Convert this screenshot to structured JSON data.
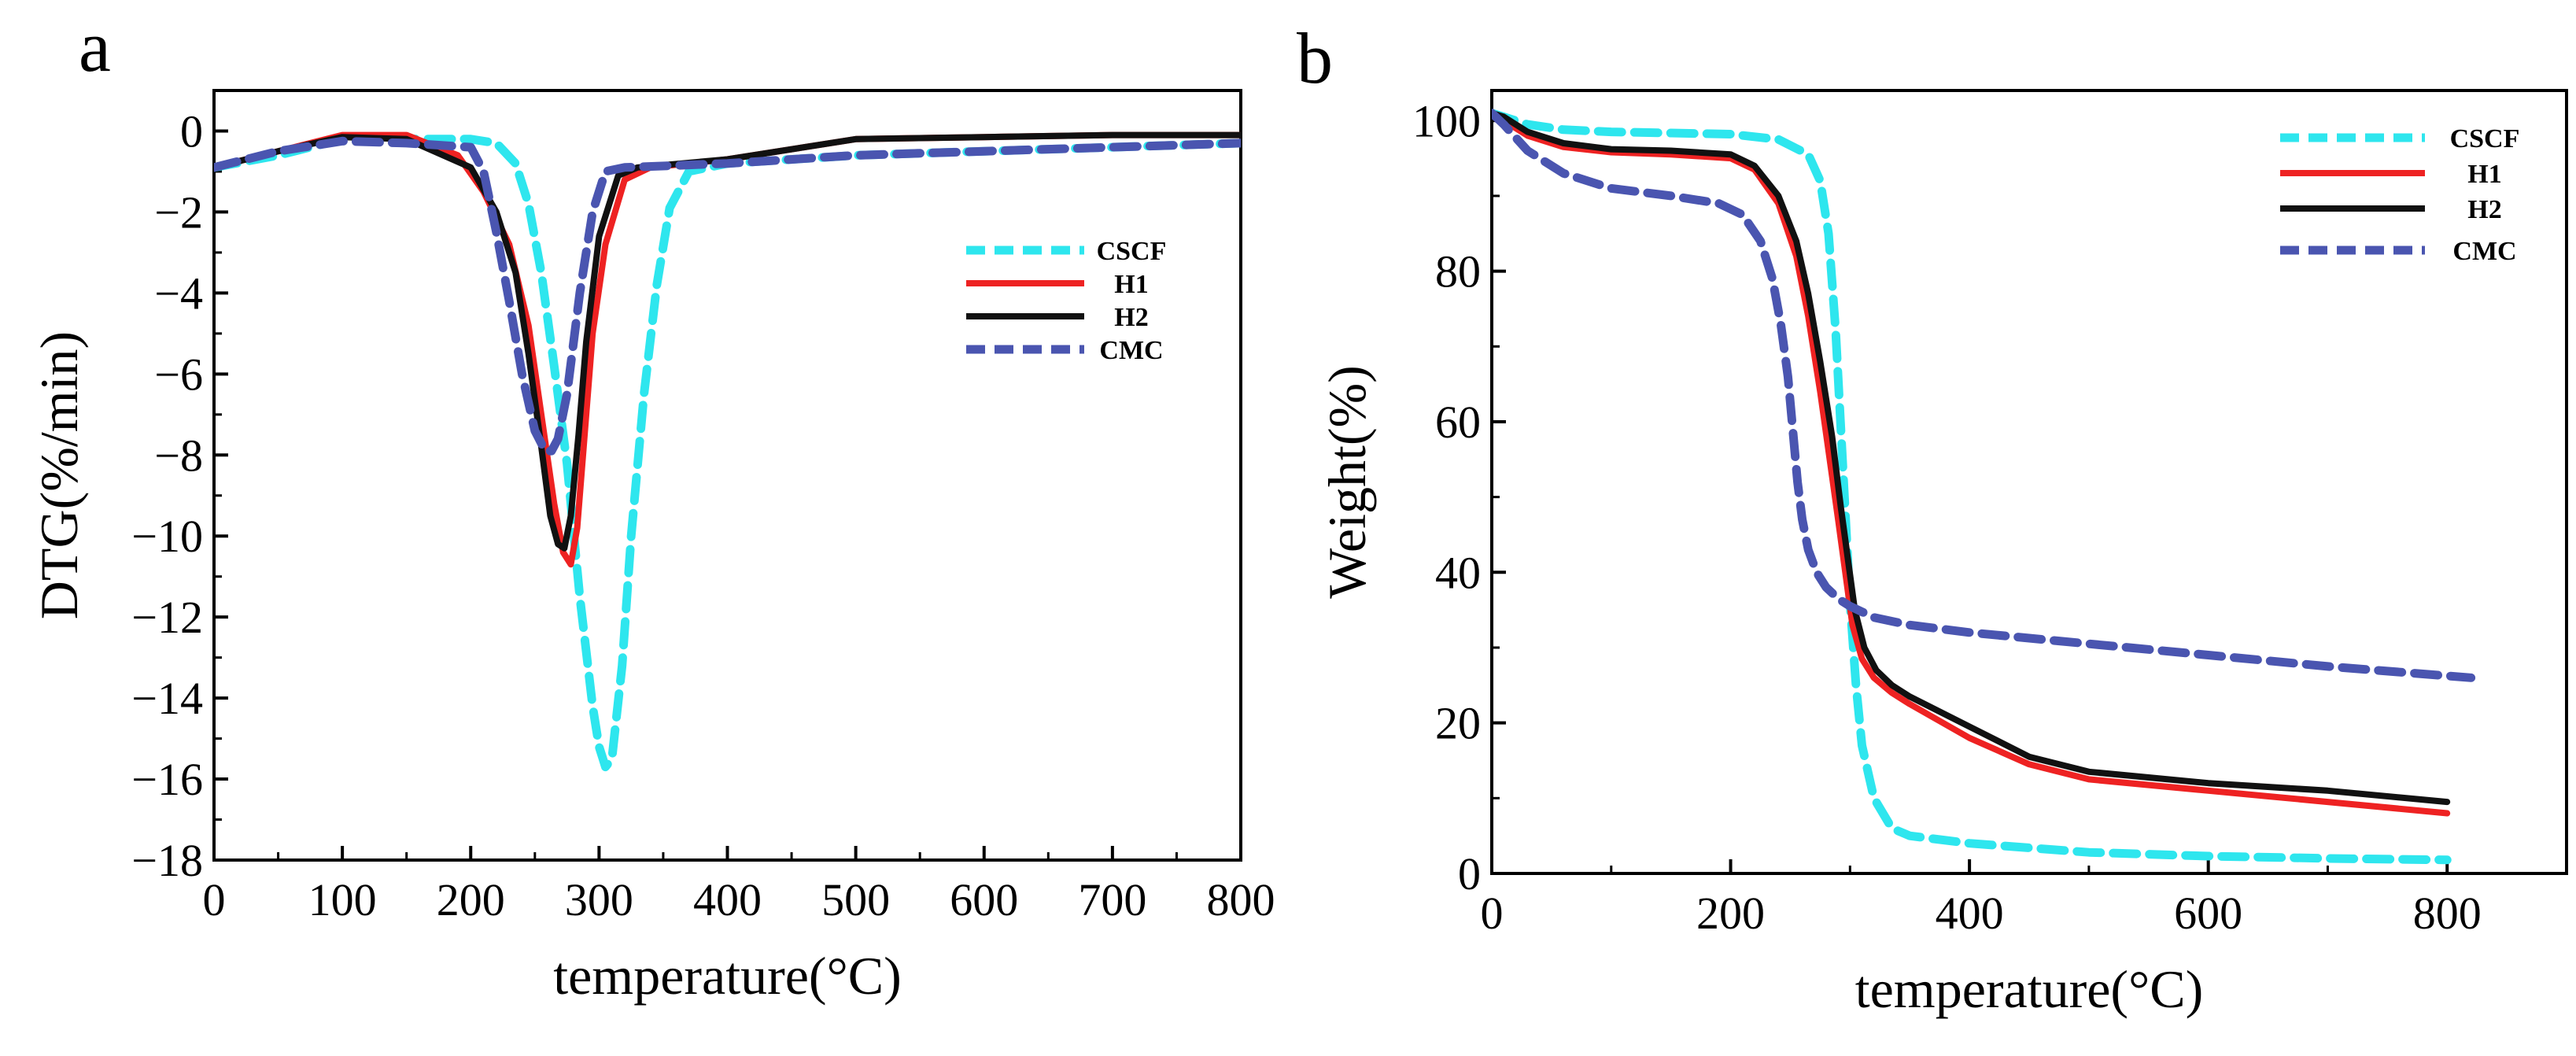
{
  "figure": {
    "panel_labels": [
      "a",
      "b"
    ]
  },
  "chart_data": [
    {
      "type": "line",
      "panel": "a",
      "xlabel": "temperature(°C)",
      "ylabel": "DTG(%/min)",
      "xlim": [
        0,
        800
      ],
      "ylim": [
        -18,
        1
      ],
      "xticks": [
        0,
        100,
        200,
        300,
        400,
        500,
        600,
        700,
        800
      ],
      "yticks": [
        0,
        -2,
        -4,
        -6,
        -8,
        -10,
        -12,
        -14,
        -16,
        -18
      ],
      "legend_position": "right",
      "series": [
        {
          "name": "CSCF",
          "color": "#2ee6ee",
          "dash": "dashed",
          "x": [
            0,
            50,
            100,
            150,
            200,
            220,
            235,
            245,
            255,
            265,
            275,
            285,
            295,
            300,
            305,
            310,
            318,
            325,
            335,
            345,
            355,
            370,
            400,
            500,
            600,
            700,
            800
          ],
          "y": [
            -0.9,
            -0.6,
            -0.2,
            -0.2,
            -0.2,
            -0.3,
            -0.8,
            -1.8,
            -3.5,
            -5.8,
            -8.2,
            -11.5,
            -14.2,
            -15.2,
            -15.7,
            -15.5,
            -13.2,
            -10.0,
            -6.5,
            -3.8,
            -1.9,
            -1.0,
            -0.8,
            -0.6,
            -0.5,
            -0.4,
            -0.3
          ]
        },
        {
          "name": "H1",
          "color": "#ee2222",
          "dash": "solid",
          "x": [
            0,
            50,
            100,
            150,
            190,
            210,
            230,
            245,
            255,
            265,
            272,
            278,
            283,
            288,
            295,
            305,
            320,
            340,
            400,
            500,
            600,
            700,
            800
          ],
          "y": [
            -0.9,
            -0.5,
            -0.1,
            -0.1,
            -0.6,
            -1.5,
            -2.8,
            -4.8,
            -7.0,
            -9.2,
            -10.4,
            -10.7,
            -9.8,
            -7.8,
            -5.0,
            -2.8,
            -1.2,
            -0.9,
            -0.7,
            -0.2,
            -0.15,
            -0.1,
            -0.1
          ]
        },
        {
          "name": "H2",
          "color": "#111111",
          "dash": "solid",
          "x": [
            0,
            50,
            100,
            150,
            200,
            220,
            235,
            245,
            255,
            262,
            268,
            273,
            278,
            284,
            290,
            300,
            315,
            330,
            400,
            500,
            600,
            700,
            800
          ],
          "y": [
            -0.9,
            -0.5,
            -0.15,
            -0.2,
            -0.9,
            -2.0,
            -3.5,
            -5.5,
            -7.8,
            -9.5,
            -10.2,
            -10.3,
            -9.5,
            -7.5,
            -5.2,
            -2.6,
            -1.1,
            -0.9,
            -0.7,
            -0.2,
            -0.15,
            -0.1,
            -0.1
          ]
        },
        {
          "name": "CMC",
          "color": "#4a55b0",
          "dash": "dashed",
          "x": [
            0,
            50,
            100,
            150,
            200,
            210,
            220,
            230,
            240,
            250,
            258,
            263,
            268,
            275,
            285,
            295,
            305,
            320,
            400,
            500,
            600,
            700,
            800
          ],
          "y": [
            -0.9,
            -0.5,
            -0.25,
            -0.3,
            -0.4,
            -1.0,
            -2.5,
            -4.2,
            -6.0,
            -7.4,
            -7.9,
            -7.9,
            -7.6,
            -6.5,
            -4.0,
            -2.0,
            -1.0,
            -0.9,
            -0.8,
            -0.6,
            -0.5,
            -0.4,
            -0.3
          ]
        }
      ]
    },
    {
      "type": "line",
      "panel": "b",
      "xlabel": "temperature(°C)",
      "ylabel": "Weight(%)",
      "xlim": [
        0,
        900
      ],
      "ylim": [
        0,
        104
      ],
      "xticks": [
        0,
        200,
        400,
        600,
        800
      ],
      "yticks": [
        0,
        20,
        40,
        60,
        80,
        100
      ],
      "legend_position": "top-right",
      "series": [
        {
          "name": "CSCF",
          "color": "#2ee6ee",
          "dash": "dashed",
          "x": [
            0,
            10,
            30,
            60,
            100,
            200,
            240,
            265,
            275,
            282,
            288,
            292,
            296,
            300,
            305,
            310,
            320,
            335,
            350,
            400,
            500,
            600,
            700,
            800
          ],
          "y": [
            101,
            100.5,
            99.5,
            98.8,
            98.5,
            98.2,
            97.5,
            95.5,
            92.0,
            85.0,
            72.0,
            60.0,
            48.0,
            36.0,
            25.0,
            17.0,
            10.0,
            6.0,
            5.0,
            4.0,
            2.8,
            2.3,
            2.0,
            1.8
          ]
        },
        {
          "name": "H1",
          "color": "#ee2222",
          "dash": "solid",
          "x": [
            0,
            10,
            30,
            60,
            100,
            150,
            200,
            220,
            240,
            255,
            265,
            275,
            283,
            290,
            296,
            302,
            310,
            320,
            335,
            350,
            400,
            450,
            500,
            600,
            700,
            800
          ],
          "y": [
            101,
            100,
            98,
            96.5,
            95.8,
            95.5,
            95.0,
            93.5,
            89.0,
            82.0,
            74.0,
            64.0,
            55.0,
            47.0,
            40.0,
            33.0,
            28.5,
            26.0,
            24.0,
            22.5,
            18.0,
            14.5,
            12.5,
            11.0,
            9.5,
            8.0
          ]
        },
        {
          "name": "H2",
          "color": "#111111",
          "dash": "solid",
          "x": [
            0,
            10,
            30,
            60,
            100,
            150,
            200,
            220,
            240,
            255,
            265,
            275,
            285,
            292,
            298,
            304,
            312,
            322,
            335,
            350,
            400,
            450,
            500,
            600,
            700,
            800
          ],
          "y": [
            101,
            100.5,
            98.5,
            97.0,
            96.2,
            96.0,
            95.5,
            94.0,
            90.0,
            84.0,
            77.0,
            68.0,
            58.0,
            49.0,
            42.0,
            35.0,
            30.0,
            27.0,
            25.0,
            23.5,
            19.5,
            15.5,
            13.5,
            12.0,
            11.0,
            9.5
          ]
        },
        {
          "name": "CMC",
          "color": "#4a55b0",
          "dash": "dashed",
          "x": [
            0,
            10,
            30,
            60,
            100,
            150,
            190,
            210,
            225,
            235,
            242,
            248,
            252,
            256,
            260,
            265,
            272,
            280,
            290,
            300,
            320,
            350,
            400,
            500,
            600,
            700,
            820
          ],
          "y": [
            101,
            99.5,
            96.0,
            93.0,
            91.0,
            90.0,
            89.0,
            87.5,
            84.0,
            79.0,
            73.0,
            66.0,
            59.0,
            52.0,
            47.0,
            43.0,
            40.0,
            38.0,
            36.5,
            35.5,
            34.0,
            33.0,
            32.0,
            30.5,
            29.0,
            27.5,
            26.0
          ]
        }
      ]
    }
  ]
}
